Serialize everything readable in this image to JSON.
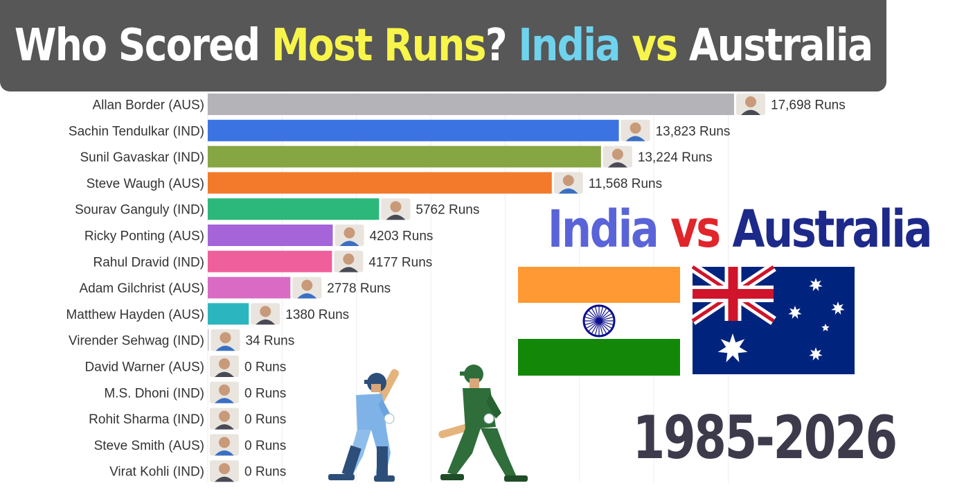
{
  "title": {
    "parts": [
      {
        "text": "Who Scored ",
        "color": "#ffffff"
      },
      {
        "text": "Most Runs",
        "color": "#f7f54a"
      },
      {
        "text": "? ",
        "color": "#ffffff"
      },
      {
        "text": "India",
        "color": "#6fd3ee"
      },
      {
        "text": " vs ",
        "color": "#f7f54a"
      },
      {
        "text": "Australia",
        "color": "#ffffff"
      }
    ]
  },
  "headline": {
    "india": "India",
    "india_color": "#5a64d8",
    "vs": "vs",
    "vs_color": "#e0262a",
    "australia": "Australia",
    "australia_color": "#1d2a8a"
  },
  "year_range": {
    "text": "1985-2026",
    "color": "#3d3a4c"
  },
  "flags": {
    "india": {
      "saffron": "#ff9933",
      "white": "#ffffff",
      "green": "#138808",
      "chakra": "#0d0f8c"
    },
    "australia": {
      "blue": "#00247d",
      "red": "#cf142b",
      "white": "#ffffff"
    }
  },
  "chart_data": {
    "type": "bar",
    "orientation": "horizontal",
    "xlim": [
      0,
      17698
    ],
    "value_suffix": " Runs",
    "categories": [
      "Allan Border (AUS)",
      "Sachin Tendulkar (IND)",
      "Sunil Gavaskar (IND)",
      "Steve Waugh (AUS)",
      "Sourav Ganguly (IND)",
      "Ricky Ponting (AUS)",
      "Rahul Dravid (IND)",
      "Adam Gilchrist (AUS)",
      "Matthew Hayden (AUS)",
      "Virender Sehwag (IND)",
      "David Warner (AUS)",
      "M.S. Dhoni (IND)",
      "Rohit Sharma (IND)",
      "Steve Smith (AUS)",
      "Virat Kohli (IND)"
    ],
    "values": [
      17698,
      13823,
      13224,
      11568,
      5762,
      4203,
      4177,
      2778,
      1380,
      34,
      0,
      0,
      0,
      0,
      0
    ],
    "value_labels": [
      "17,698 Runs",
      "13,823 Runs",
      "13,224 Runs",
      "11,568 Runs",
      "5762 Runs",
      "4203 Runs",
      "4177 Runs",
      "2778 Runs",
      "1380 Runs",
      "34 Runs",
      "0 Runs",
      "0 Runs",
      "0 Runs",
      "0 Runs",
      "0 Runs"
    ],
    "colors": [
      "#b3b3b8",
      "#3b73e2",
      "#86a543",
      "#f27a2a",
      "#2cb87a",
      "#a564d8",
      "#ef5f9c",
      "#d96bc4",
      "#2bb5bf",
      "#c6c6cf",
      "#8b6ad6",
      "#b1c77f",
      "#f3a054",
      "#5fd3e0",
      "#f07ec1"
    ],
    "grid": true
  }
}
